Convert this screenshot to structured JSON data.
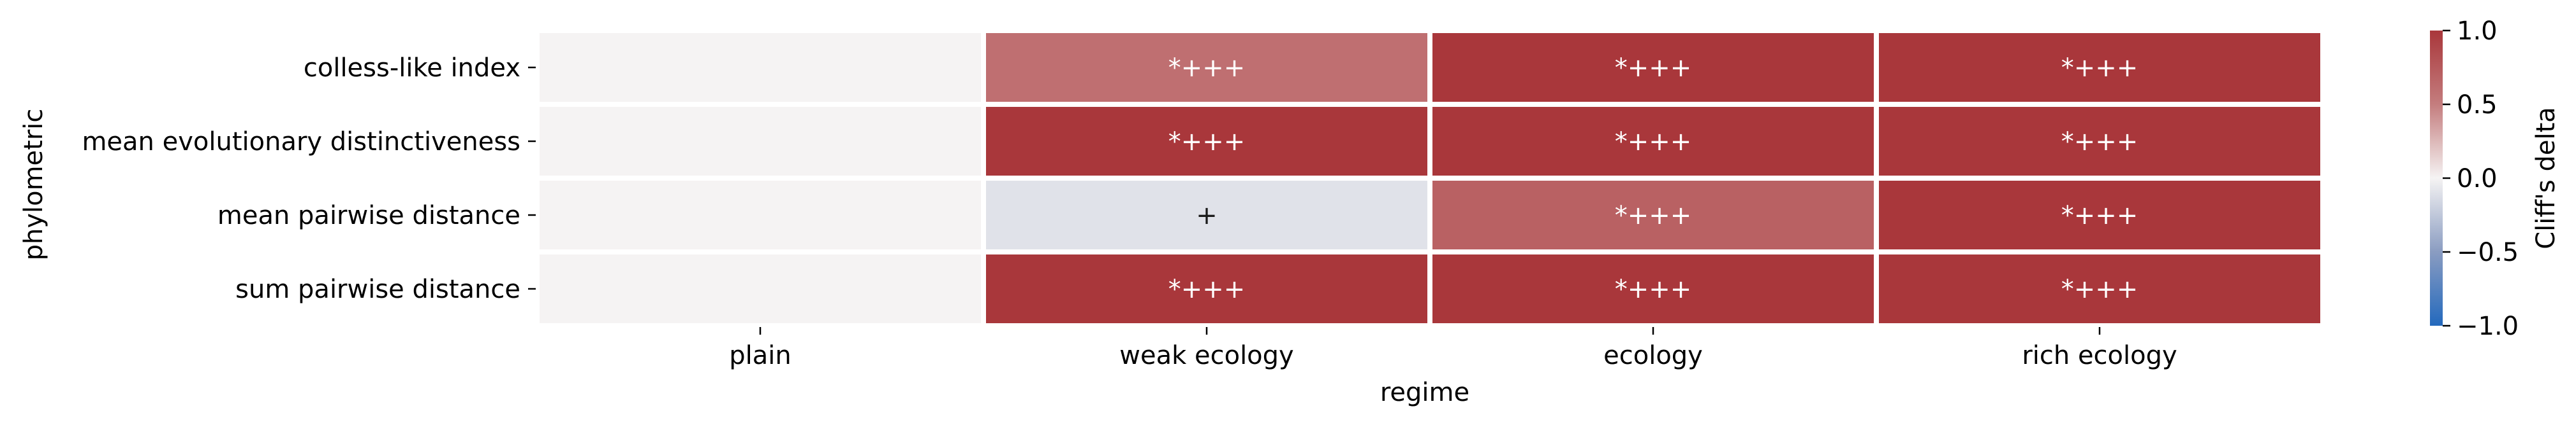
{
  "chart_data": {
    "type": "heatmap",
    "title": "",
    "xlabel": "regime",
    "ylabel": "phylometric",
    "x_categories": [
      "plain",
      "weak ecology",
      "ecology",
      "rich ecology"
    ],
    "y_categories": [
      "colless-like index",
      "mean evolutionary distinctiveness",
      "mean pairwise distance",
      "sum pairwise distance"
    ],
    "values": [
      [
        0.0,
        0.6,
        1.0,
        1.0
      ],
      [
        0.0,
        1.0,
        1.0,
        1.0
      ],
      [
        0.0,
        -0.1,
        0.7,
        1.0
      ],
      [
        0.0,
        1.0,
        1.0,
        1.0
      ]
    ],
    "annotations": [
      [
        "",
        "*+++",
        "*+++",
        "*+++"
      ],
      [
        "",
        "*+++",
        "*+++",
        "*+++"
      ],
      [
        "",
        "+",
        "*+++",
        "*+++"
      ],
      [
        "",
        "*+++",
        "*+++",
        "*+++"
      ]
    ],
    "colorbar": {
      "label": "Cliff's delta",
      "vmin": -1.0,
      "vmax": 1.0,
      "ticks": [
        "1.0",
        "0.5",
        "0.0",
        "−0.5",
        "−1.0"
      ],
      "tick_values": [
        1.0,
        0.5,
        0.0,
        -0.5,
        -1.0
      ],
      "cmap": "vlag",
      "colors": {
        "neg": "#2369bd",
        "mid": "#f5f3f3",
        "pos": "#a9373b"
      }
    },
    "legend": "none",
    "grid": false
  }
}
